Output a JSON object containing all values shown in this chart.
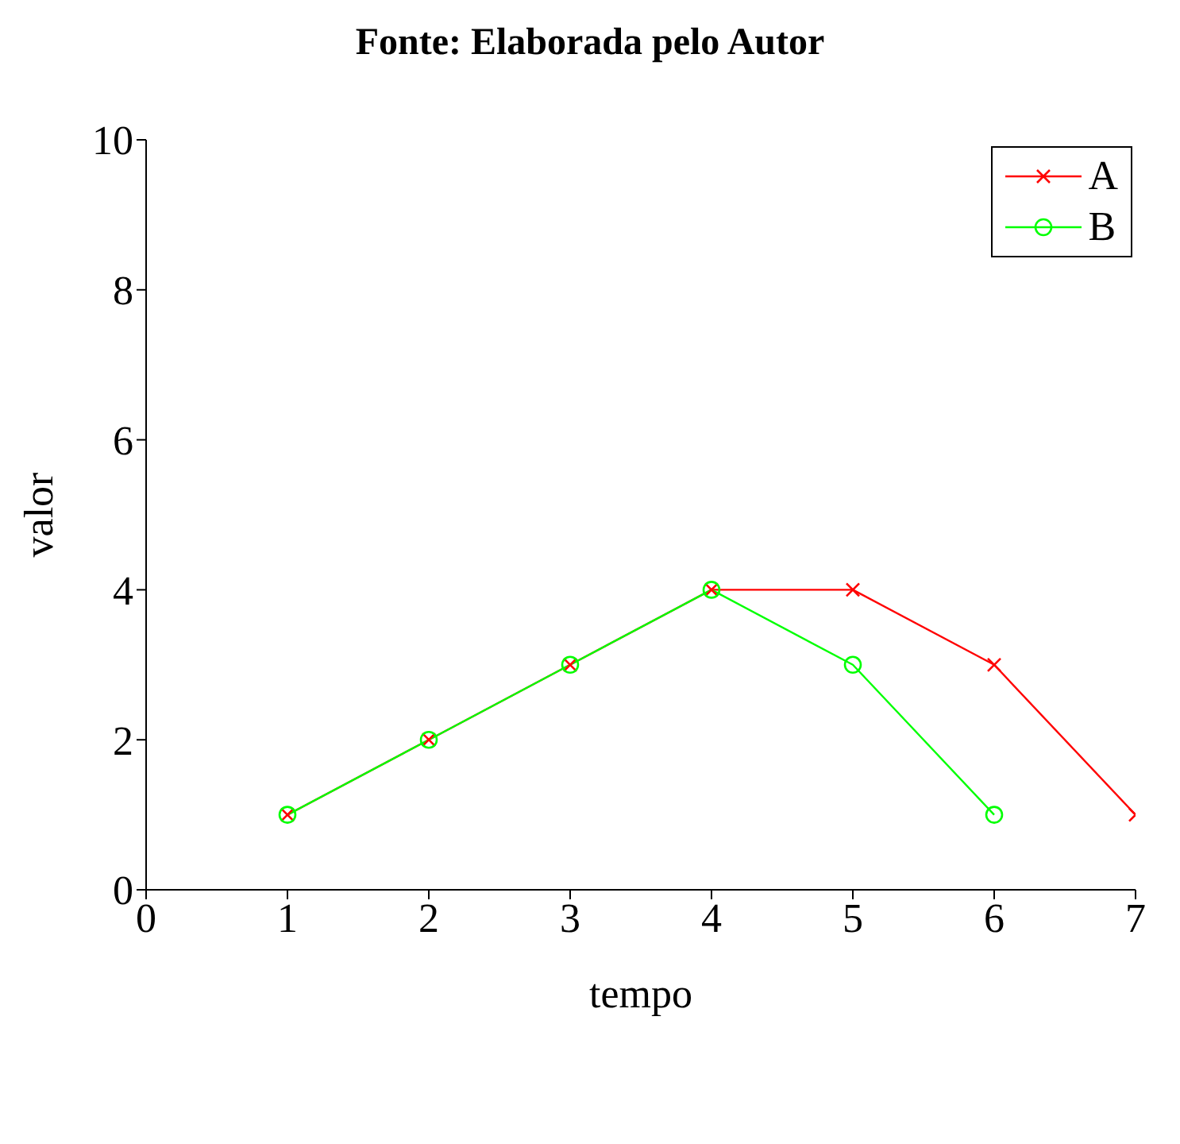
{
  "chart_data": {
    "type": "line",
    "title": "Fonte: Elaborada pelo Autor",
    "xlabel": "tempo",
    "ylabel": "valor",
    "x": [
      1,
      2,
      3,
      4,
      5,
      6,
      7
    ],
    "series": [
      {
        "name": "A",
        "color": "#ff0000",
        "marker": "cross",
        "values": [
          1,
          2,
          3,
          4,
          4,
          3,
          1
        ]
      },
      {
        "name": "B",
        "color": "#00ff00",
        "marker": "circle",
        "values": [
          1,
          2,
          3,
          4,
          3,
          1,
          null
        ]
      }
    ],
    "xlim": [
      0,
      7
    ],
    "xticks": [
      0,
      1,
      2,
      3,
      4,
      5,
      6,
      7
    ],
    "ylim": [
      0,
      10
    ],
    "yticks": [
      0,
      2,
      4,
      6,
      8,
      10
    ],
    "grid": false,
    "legend": "top right"
  }
}
